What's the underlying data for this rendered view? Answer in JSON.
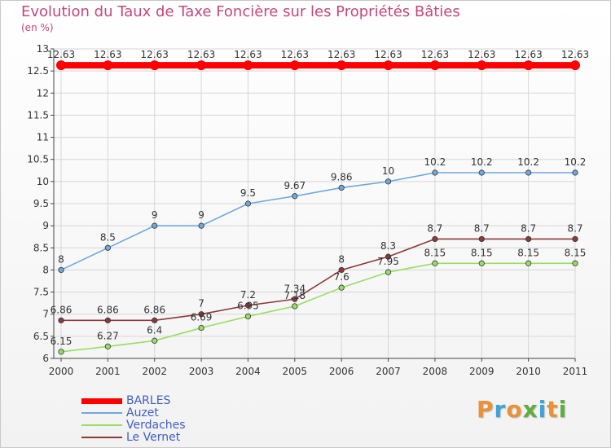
{
  "chart_data": {
    "type": "line",
    "title": "Evolution du Taux de Taxe Foncière sur les Propriétés Bâties",
    "ylabel": "(en %)",
    "xlabel": "",
    "ylim": [
      6,
      13
    ],
    "yticks": [
      "6",
      "6.5",
      "7",
      "7.5",
      "8",
      "8.5",
      "9",
      "9.5",
      "10",
      "10.5",
      "11",
      "11.5",
      "12",
      "12.5",
      "13"
    ],
    "categories": [
      "2000",
      "2001",
      "2002",
      "2003",
      "2004",
      "2005",
      "2006",
      "2007",
      "2008",
      "2009",
      "2010",
      "2011"
    ],
    "series": [
      {
        "name": "BARLES",
        "color": "#ff0000",
        "values": [
          12.63,
          12.63,
          12.63,
          12.63,
          12.63,
          12.63,
          12.63,
          12.63,
          12.63,
          12.63,
          12.63,
          12.63
        ],
        "labels": [
          "12.63",
          "12.63",
          "12.63",
          "12.63",
          "12.63",
          "12.63",
          "12.63",
          "12.63",
          "12.63",
          "12.63",
          "12.63",
          "12.63"
        ]
      },
      {
        "name": "Auzet",
        "color": "#6fa8dc",
        "values": [
          8,
          8.5,
          9,
          9,
          9.5,
          9.67,
          9.86,
          10,
          10.2,
          10.2,
          10.2,
          10.2
        ],
        "labels": [
          "8",
          "8.5",
          "9",
          "9",
          "9.5",
          "9.67",
          "9.86",
          "10",
          "10.2",
          "10.2",
          "10.2",
          "10.2"
        ]
      },
      {
        "name": "Verdaches",
        "color": "#99dd66",
        "values": [
          6.15,
          6.27,
          6.4,
          6.69,
          6.95,
          7.18,
          7.6,
          7.95,
          8.15,
          8.15,
          8.15,
          8.15
        ],
        "labels": [
          "6.15",
          "6.27",
          "6.4",
          "6.69",
          "6.95",
          "7.18",
          "7.6",
          "7.95",
          "8.15",
          "8.15",
          "8.15",
          "8.15"
        ]
      },
      {
        "name": "Le Vernet",
        "color": "#8b3a3a",
        "values": [
          6.86,
          6.86,
          6.86,
          7,
          7.2,
          7.34,
          8,
          8.3,
          8.7,
          8.7,
          8.7,
          8.7
        ],
        "labels": [
          "6.86",
          "6.86",
          "6.86",
          "7",
          "7.2",
          "7.34",
          "8",
          "8.3",
          "8.7",
          "8.7",
          "8.7",
          "8.7"
        ]
      }
    ],
    "logo_text": "Proxiti"
  }
}
